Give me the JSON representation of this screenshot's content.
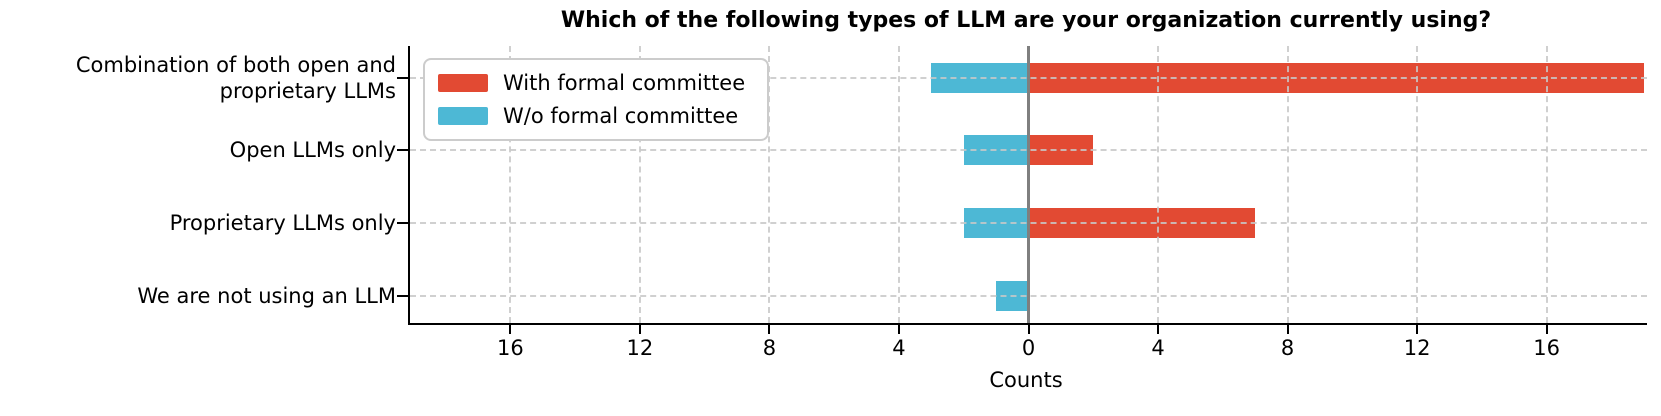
{
  "chart_data": {
    "type": "bar",
    "orientation": "horizontal-diverging",
    "title": "Which of the following types of LLM are your organization currently using?",
    "xlabel": "Counts",
    "categories": [
      "Combination of both open and\nproprietary LLMs",
      "Open LLMs only",
      "Proprietary LLMs only",
      "We are not using an LLM"
    ],
    "series": [
      {
        "name": "With formal committee",
        "color": "#e24a33",
        "direction": "right",
        "values": [
          19,
          2,
          7,
          0
        ]
      },
      {
        "name": "W/o formal committee",
        "color": "#4db8d5",
        "direction": "left",
        "values": [
          3,
          2,
          2,
          1
        ]
      }
    ],
    "x_ticks": [
      -16,
      -12,
      -8,
      -4,
      0,
      4,
      8,
      12,
      16
    ],
    "x_tick_labels": [
      "16",
      "12",
      "8",
      "4",
      "0",
      "4",
      "8",
      "12",
      "16"
    ],
    "xlim": [
      -19.1,
      19.1
    ],
    "grid": true,
    "legend_position": "upper-left"
  },
  "colors": {
    "zero_line": "#7f7f7f",
    "gridline": "#c8c8c8",
    "spine": "#000000",
    "legend_border": "#cccccc",
    "background": "#ffffff"
  }
}
